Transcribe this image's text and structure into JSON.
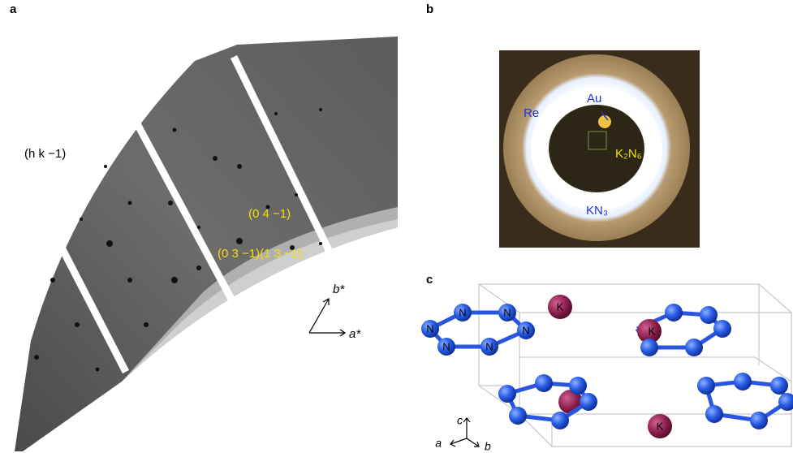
{
  "panel_a": {
    "label": "a",
    "plane": "(h k −1)",
    "spot1": "(0 4 −1)",
    "spot2": "(0 3 −1)(1 3 −1)",
    "axis_b": "b*",
    "axis_a": "a*"
  },
  "panel_b": {
    "label": "b",
    "re": "Re",
    "au": "Au",
    "k2n6": "K₂N₆",
    "kn3": "KN₃"
  },
  "panel_c": {
    "label": "c",
    "n_labels": [
      "N",
      "N",
      "N",
      "N",
      "N",
      "N"
    ],
    "k_labels": [
      "K",
      "K",
      "K"
    ],
    "axis_c": "c",
    "axis_a": "a",
    "axis_b": "b"
  }
}
